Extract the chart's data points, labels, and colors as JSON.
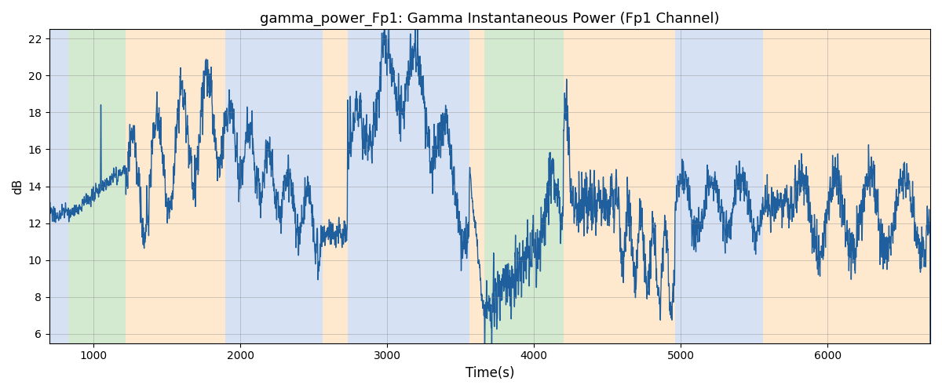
{
  "title": "gamma_power_Fp1: Gamma Instantaneous Power (Fp1 Channel)",
  "xlabel": "Time(s)",
  "ylabel": "dB",
  "xlim": [
    700,
    6700
  ],
  "ylim": [
    5.5,
    22.5
  ],
  "yticks": [
    6,
    8,
    10,
    12,
    14,
    16,
    18,
    20,
    22
  ],
  "xticks": [
    1000,
    2000,
    3000,
    4000,
    5000,
    6000
  ],
  "line_color": "#1f5f9e",
  "line_width": 1.0,
  "bg_regions": [
    {
      "xstart": 700,
      "xend": 830,
      "color": "#aec6e8",
      "alpha": 0.5
    },
    {
      "xstart": 830,
      "xend": 1220,
      "color": "#a8d5a2",
      "alpha": 0.5
    },
    {
      "xstart": 1220,
      "xend": 1900,
      "color": "#ffd59e",
      "alpha": 0.5
    },
    {
      "xstart": 1900,
      "xend": 2560,
      "color": "#aec6e8",
      "alpha": 0.5
    },
    {
      "xstart": 2560,
      "xend": 2730,
      "color": "#ffd59e",
      "alpha": 0.5
    },
    {
      "xstart": 2730,
      "xend": 3560,
      "color": "#aec6e8",
      "alpha": 0.5
    },
    {
      "xstart": 3560,
      "xend": 3660,
      "color": "#ffd59e",
      "alpha": 0.5
    },
    {
      "xstart": 3660,
      "xend": 4200,
      "color": "#a8d5a2",
      "alpha": 0.5
    },
    {
      "xstart": 4200,
      "xend": 4540,
      "color": "#ffd59e",
      "alpha": 0.5
    },
    {
      "xstart": 4540,
      "xend": 4960,
      "color": "#ffd59e",
      "alpha": 0.5
    },
    {
      "xstart": 4960,
      "xend": 5560,
      "color": "#aec6e8",
      "alpha": 0.5
    },
    {
      "xstart": 5560,
      "xend": 5760,
      "color": "#ffd59e",
      "alpha": 0.5
    },
    {
      "xstart": 5760,
      "xend": 6700,
      "color": "#ffd59e",
      "alpha": 0.5
    }
  ],
  "figsize": [
    12,
    5
  ],
  "dpi": 100
}
